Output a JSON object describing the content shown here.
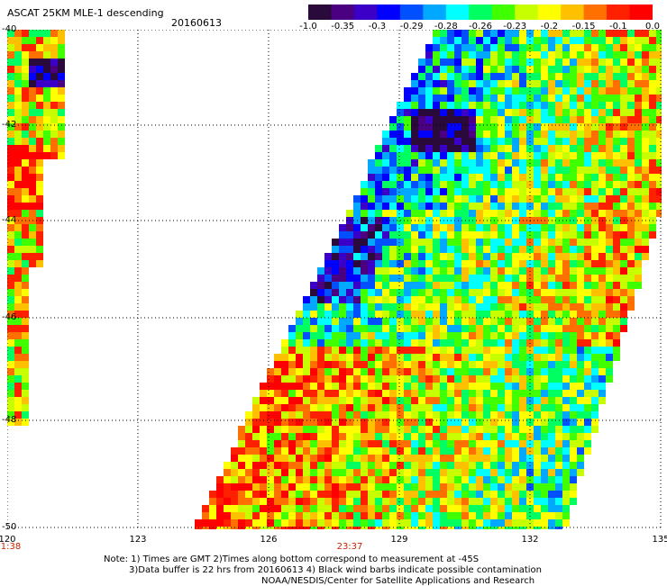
{
  "title": "ASCAT 25KM MLE-1 descending",
  "date": "20160613",
  "colorbar": {
    "ticks": [
      "-1.0",
      "-0.35",
      "-0.3",
      "-0.29",
      "-0.28",
      "-0.26",
      "-0.23",
      "-0.2",
      "-0.15",
      "-0.1",
      "0.0"
    ],
    "colors": [
      "#2a0a3a",
      "#4b0082",
      "#3a00c8",
      "#0000ff",
      "#0050ff",
      "#00a8ff",
      "#00ffff",
      "#00ff60",
      "#40ff00",
      "#c8ff00",
      "#ffff00",
      "#ffc000",
      "#ff7000",
      "#ff2000",
      "#ff0000"
    ]
  },
  "axes": {
    "x_ticks": [
      "120",
      "123",
      "126",
      "129",
      "132",
      "135"
    ],
    "y_ticks": [
      "-40",
      "-42",
      "-44",
      "-46",
      "-48",
      "-50"
    ]
  },
  "times": {
    "left": "1:38",
    "middle": "23:37"
  },
  "notes": {
    "line1": "Note: 1) Times are GMT 2)Times along bottom correspond to measurement at -45S",
    "line2": "3)Data buffer is 22 hrs from 20160613 4) Black wind barbs indicate possible contamination",
    "line3": "NOAA/NESDIS/Center for Satellite Applications and Research"
  }
}
